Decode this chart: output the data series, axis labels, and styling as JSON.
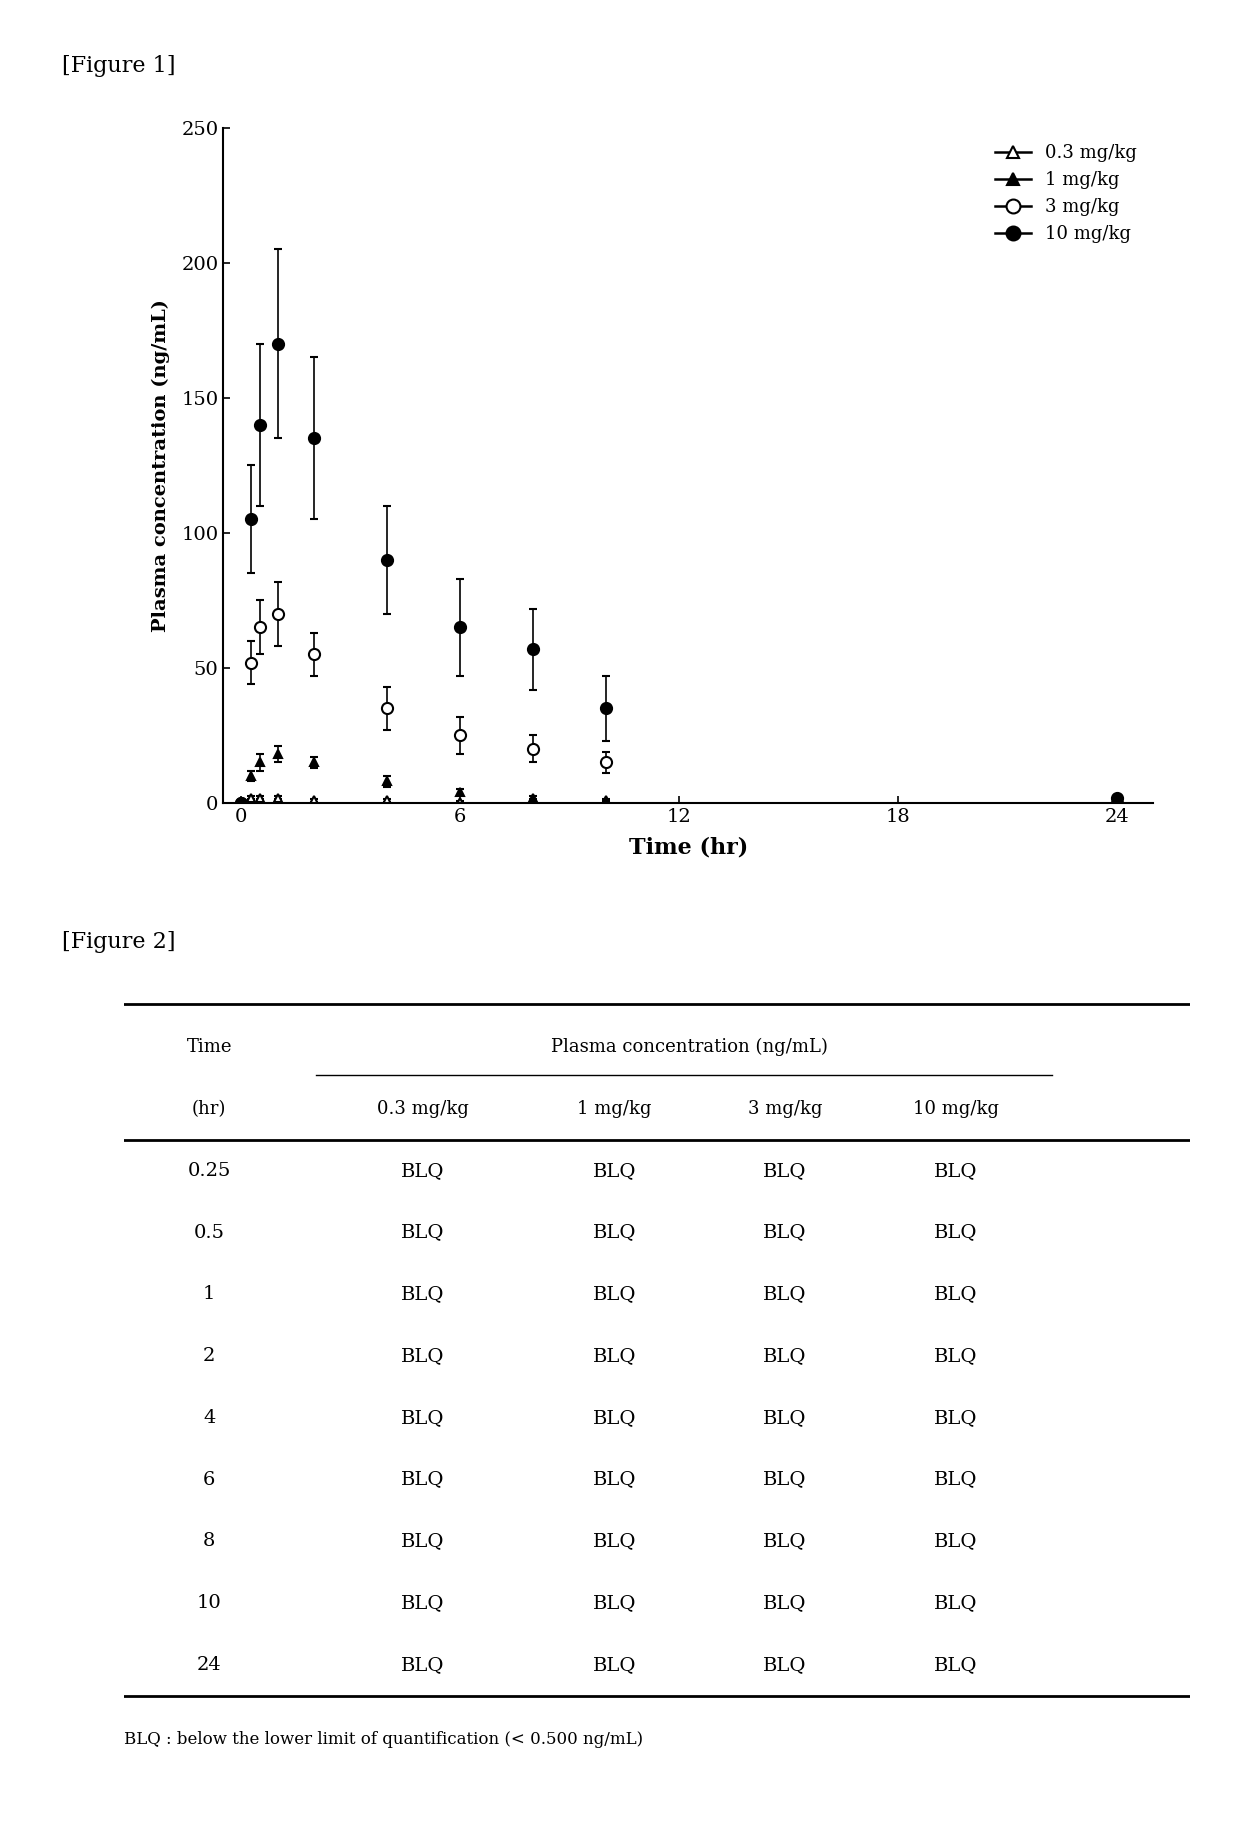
{
  "figure1_label": "[Figure 1]",
  "figure2_label": "[Figure 2]",
  "xlabel": "Time (hr)",
  "ylabel": "Plasma concentration (ng/mL)",
  "ylim": [
    0,
    250
  ],
  "yticks": [
    0,
    50,
    100,
    150,
    200,
    250
  ],
  "xticks": [
    0,
    6,
    12,
    18,
    24
  ],
  "xticklabels": [
    "0",
    "6",
    "12",
    "18",
    "24"
  ],
  "series": [
    {
      "label": "0.3 mg/kg",
      "marker": "triangle_open",
      "filled": false,
      "color": "#000000",
      "x": [
        0,
        0.25,
        0.5,
        1,
        2,
        4,
        6,
        8,
        10,
        24
      ],
      "y": [
        0,
        2,
        2,
        2,
        1,
        1,
        0.5,
        0.5,
        0.5,
        0
      ],
      "yerr": [
        0,
        0.5,
        0.5,
        0.5,
        0.5,
        0.5,
        0.3,
        0.3,
        0.3,
        0
      ]
    },
    {
      "label": "1 mg/kg",
      "marker": "triangle_filled",
      "filled": true,
      "color": "#000000",
      "x": [
        0,
        0.25,
        0.5,
        1,
        2,
        4,
        6,
        8,
        10,
        24
      ],
      "y": [
        0,
        10,
        15,
        18,
        15,
        8,
        4,
        2,
        1,
        0
      ],
      "yerr": [
        0,
        2,
        3,
        3,
        2,
        2,
        1,
        0.5,
        0.5,
        0
      ]
    },
    {
      "label": "3 mg/kg",
      "marker": "circle_open",
      "filled": false,
      "color": "#000000",
      "x": [
        0,
        0.25,
        0.5,
        1,
        2,
        4,
        6,
        8,
        10,
        24
      ],
      "y": [
        0,
        52,
        65,
        70,
        55,
        35,
        25,
        20,
        15,
        0
      ],
      "yerr": [
        0,
        8,
        10,
        12,
        8,
        8,
        7,
        5,
        4,
        0
      ]
    },
    {
      "label": "10 mg/kg",
      "marker": "circle_filled",
      "filled": true,
      "color": "#000000",
      "x": [
        0,
        0.25,
        0.5,
        1,
        2,
        4,
        6,
        8,
        10,
        24
      ],
      "y": [
        0,
        105,
        140,
        170,
        135,
        90,
        65,
        57,
        35,
        2
      ],
      "yerr": [
        0,
        20,
        30,
        35,
        30,
        20,
        18,
        15,
        12,
        1
      ]
    }
  ],
  "table_header_row1": [
    "Time",
    "Plasma concentration (ng/mL)",
    "",
    "",
    ""
  ],
  "table_header_row2": [
    "(hr)",
    "0.3 mg/kg",
    "1 mg/kg",
    "3 mg/kg",
    "10 mg/kg"
  ],
  "table_rows": [
    [
      "0.25",
      "BLQ",
      "BLQ",
      "BLQ",
      "BLQ"
    ],
    [
      "0.5",
      "BLQ",
      "BLQ",
      "BLQ",
      "BLQ"
    ],
    [
      "1",
      "BLQ",
      "BLQ",
      "BLQ",
      "BLQ"
    ],
    [
      "2",
      "BLQ",
      "BLQ",
      "BLQ",
      "BLQ"
    ],
    [
      "4",
      "BLQ",
      "BLQ",
      "BLQ",
      "BLQ"
    ],
    [
      "6",
      "BLQ",
      "BLQ",
      "BLQ",
      "BLQ"
    ],
    [
      "8",
      "BLQ",
      "BLQ",
      "BLQ",
      "BLQ"
    ],
    [
      "10",
      "BLQ",
      "BLQ",
      "BLQ",
      "BLQ"
    ],
    [
      "24",
      "BLQ",
      "BLQ",
      "BLQ",
      "BLQ"
    ]
  ],
  "table_footnote": "BLQ : below the lower limit of quantification (< 0.500 ng/mL)",
  "bg_color": "#ffffff",
  "text_color": "#000000"
}
